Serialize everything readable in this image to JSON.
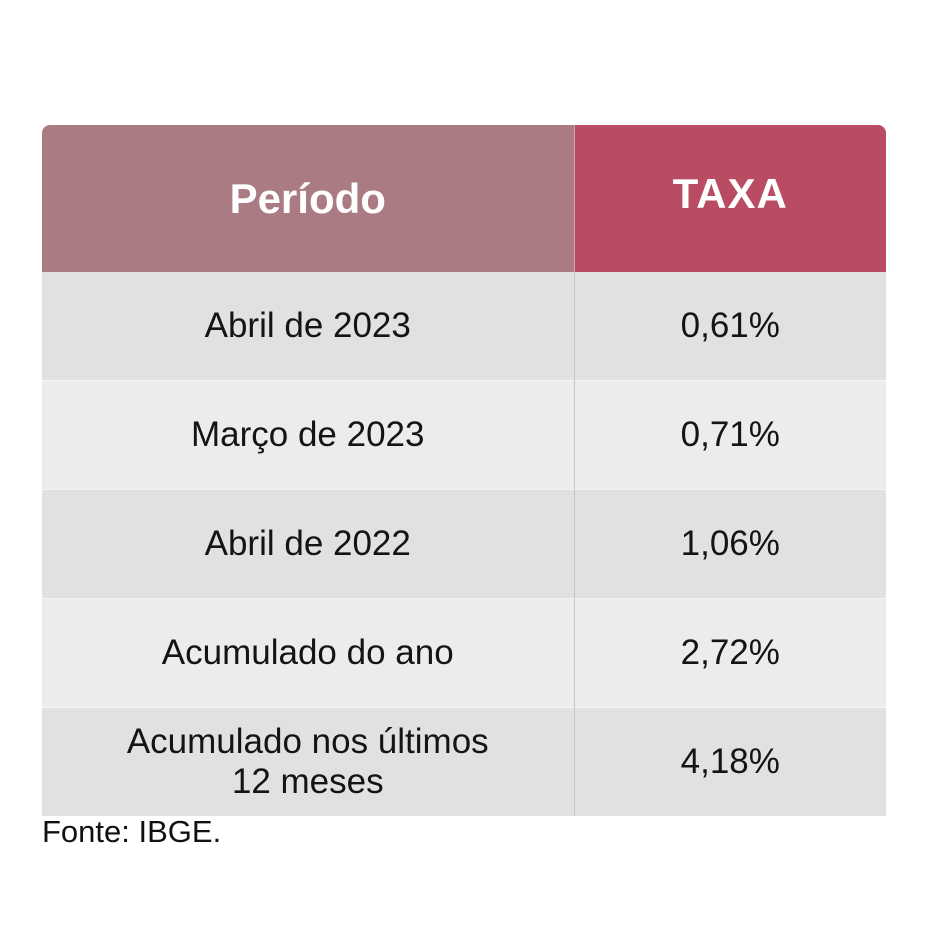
{
  "table": {
    "headers": {
      "periodo": "Período",
      "taxa": "TAXA"
    },
    "rows": [
      {
        "periodo": "Abril de 2023",
        "taxa": "0,61%"
      },
      {
        "periodo": "Março de 2023",
        "taxa": "0,71%"
      },
      {
        "periodo": "Abril de 2022",
        "taxa": "1,06%"
      },
      {
        "periodo": "Acumulado do ano",
        "taxa": "2,72%"
      },
      {
        "periodo": "Acumulado nos últimos 12 meses",
        "taxa": "4,18%"
      }
    ]
  },
  "source": "Fonte: IBGE.",
  "colors": {
    "header_periodo": "#ab7b83",
    "header_taxa": "#b94b62",
    "row_dark": "#e1e1e1",
    "row_light": "#ececec"
  }
}
